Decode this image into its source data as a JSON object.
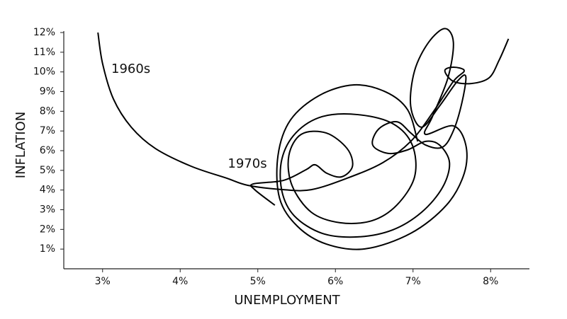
{
  "chart_data": {
    "type": "line",
    "xlabel": "UNEMPLOYMENT",
    "ylabel": "INFLATION",
    "xlim": [
      2.5,
      8.5
    ],
    "ylim": [
      0,
      12
    ],
    "xticks": [
      {
        "value": 3,
        "label": "3%"
      },
      {
        "value": 4,
        "label": "4%"
      },
      {
        "value": 5,
        "label": "5%"
      },
      {
        "value": 6,
        "label": "6%"
      },
      {
        "value": 7,
        "label": "7%"
      },
      {
        "value": 8,
        "label": "8%"
      }
    ],
    "yticks": [
      {
        "value": 1,
        "label": "1%"
      },
      {
        "value": 2,
        "label": "2%"
      },
      {
        "value": 3,
        "label": "3%"
      },
      {
        "value": 4,
        "label": "4%"
      },
      {
        "value": 5,
        "label": "5%"
      },
      {
        "value": 6,
        "label": "6%"
      },
      {
        "value": 7,
        "label": "7%"
      },
      {
        "value": 8,
        "label": "8%"
      },
      {
        "value": 9,
        "label": "9%"
      },
      {
        "value": 10,
        "label": "10%"
      },
      {
        "value": 11,
        "label": "11%"
      },
      {
        "value": 12,
        "label": "12%"
      }
    ],
    "series": [
      {
        "name": "1960s",
        "color": "#000000",
        "x": [
          2.94,
          3.0,
          3.14,
          3.37,
          3.68,
          4.14,
          4.6,
          4.87,
          5.33,
          5.69,
          6.15,
          6.61,
          6.97,
          7.25,
          7.52,
          7.66,
          7.52,
          7.41,
          7.52,
          7.75,
          7.98,
          8.11,
          8.23
        ],
        "values": [
          12.0,
          10.42,
          8.62,
          7.19,
          6.11,
          5.21,
          4.6,
          4.24,
          4.02,
          4.02,
          4.6,
          5.39,
          6.47,
          7.91,
          9.52,
          10.06,
          10.24,
          10.06,
          9.52,
          9.41,
          9.7,
          10.6,
          11.68
        ]
      },
      {
        "name": "1970s",
        "color": "#000000",
        "x": [
          5.22,
          4.96,
          4.94,
          5.33,
          5.62,
          5.74,
          5.89,
          6.08,
          6.22,
          6.15,
          5.88,
          5.56,
          5.4,
          5.44,
          5.69,
          6.06,
          6.47,
          6.79,
          7.02,
          6.99,
          6.74,
          6.29,
          5.83,
          5.49,
          5.31,
          5.31,
          5.47,
          5.83,
          6.29,
          6.74,
          7.11,
          7.38,
          7.47,
          7.34,
          7.16,
          6.93,
          6.68,
          6.48,
          6.56,
          6.79,
          6.97,
          7.16,
          7.38,
          7.52,
          7.63,
          7.68,
          7.57,
          7.34,
          7.11,
          6.97,
          7.02,
          7.2,
          7.41,
          7.52,
          7.45,
          7.25,
          7.16,
          7.52,
          7.68,
          7.66,
          7.43,
          6.97,
          6.38,
          5.88,
          5.51,
          5.28,
          5.26,
          5.42,
          5.79,
          6.24,
          6.65,
          6.93,
          7.06
        ],
        "values": [
          3.23,
          4.02,
          4.31,
          4.49,
          5.03,
          5.28,
          4.85,
          4.67,
          5.21,
          6.11,
          6.9,
          6.83,
          5.75,
          4.24,
          2.87,
          2.34,
          2.44,
          3.23,
          4.67,
          6.29,
          7.37,
          7.83,
          7.73,
          6.9,
          5.57,
          3.95,
          2.69,
          1.8,
          1.62,
          1.98,
          2.87,
          4.13,
          5.39,
          6.29,
          6.47,
          6.04,
          5.86,
          6.29,
          7.11,
          7.47,
          6.9,
          6.29,
          6.18,
          7.01,
          8.44,
          9.77,
          9.52,
          8.26,
          7.19,
          8.26,
          10.06,
          11.5,
          12.2,
          11.5,
          9.7,
          7.73,
          6.83,
          7.26,
          6.29,
          4.85,
          3.23,
          1.8,
          1.01,
          1.26,
          2.16,
          3.59,
          5.75,
          7.55,
          8.8,
          9.34,
          8.98,
          8.08,
          6.47
        ]
      }
    ]
  }
}
